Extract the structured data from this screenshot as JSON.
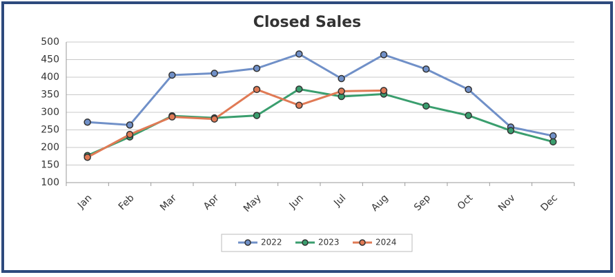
{
  "chart_data": {
    "type": "line",
    "title": "Closed Sales",
    "categories": [
      "Jan",
      "Feb",
      "Mar",
      "Apr",
      "May",
      "Jun",
      "Jul",
      "Aug",
      "Sep",
      "Oct",
      "Nov",
      "Dec"
    ],
    "series": [
      {
        "name": "2022",
        "color": "#7090c8",
        "values": [
          272,
          264,
          406,
          411,
          425,
          466,
          396,
          464,
          423,
          365,
          258,
          233
        ]
      },
      {
        "name": "2023",
        "color": "#3a9e6e",
        "values": [
          177,
          230,
          290,
          284,
          291,
          366,
          345,
          352,
          318,
          291,
          248,
          216
        ]
      },
      {
        "name": "2024",
        "color": "#e07a55",
        "values": [
          172,
          237,
          287,
          281,
          365,
          320,
          360,
          362,
          null,
          null,
          null,
          null
        ]
      }
    ],
    "ylim": [
      100,
      500
    ],
    "yticks": [
      100,
      150,
      200,
      250,
      300,
      350,
      400,
      450,
      500
    ],
    "grid": true,
    "legend": "bottom"
  }
}
